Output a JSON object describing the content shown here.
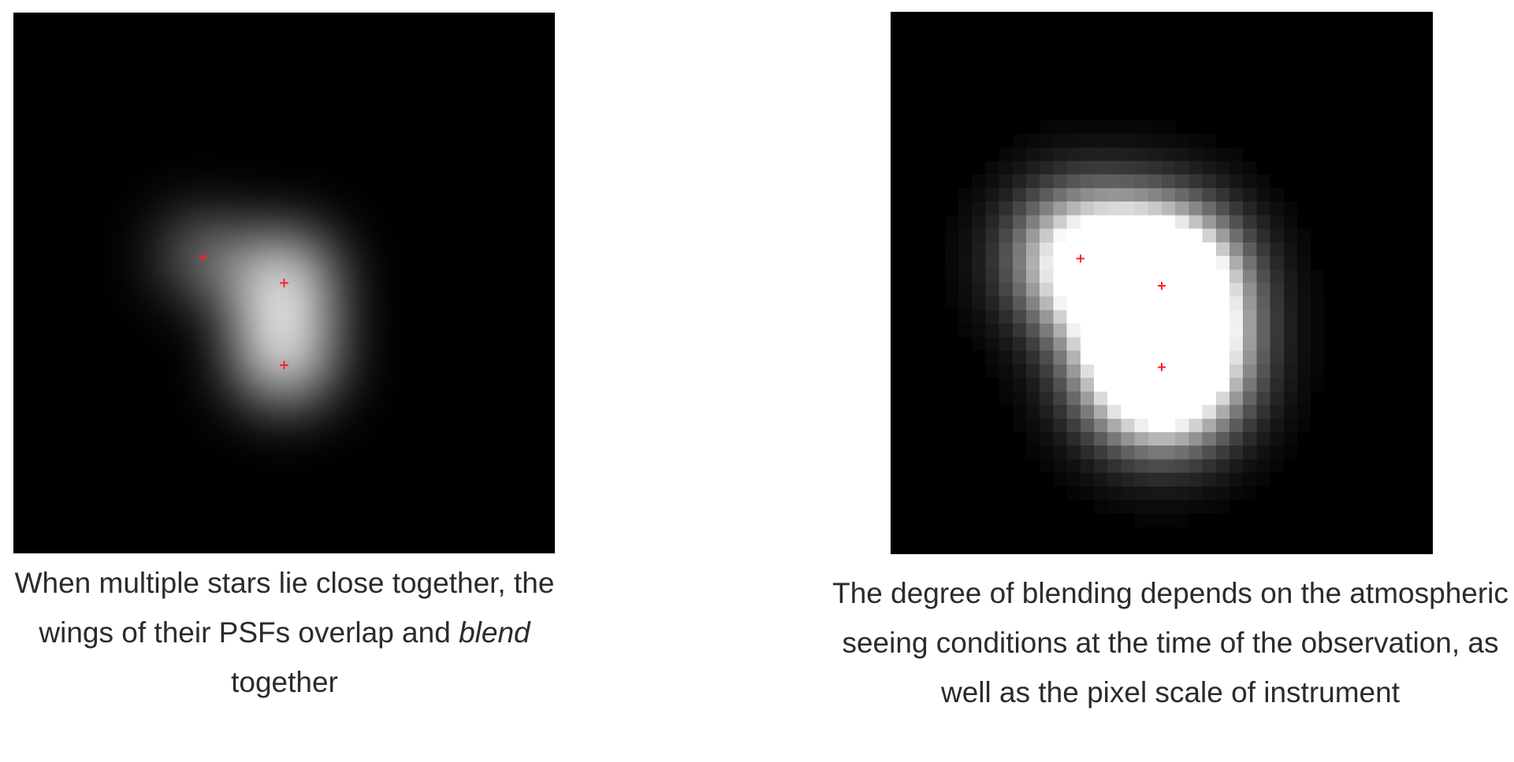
{
  "left_panel": {
    "caption_part1": "When multiple stars lie close together, the wings of their PSFs overlap and ",
    "caption_em": "blend",
    "caption_part2": " together"
  },
  "right_panel": {
    "caption": "The degree of blending depends on the atmospheric seeing conditions at the time of the observation, as well as the pixel scale of instrument"
  },
  "colors": {
    "background": "#000000",
    "star_glow": "#ffffff",
    "marker": "#ff2020",
    "caption_text": "#2b2b2b"
  },
  "icons": {
    "star_marker": "red-plus-marker"
  }
}
